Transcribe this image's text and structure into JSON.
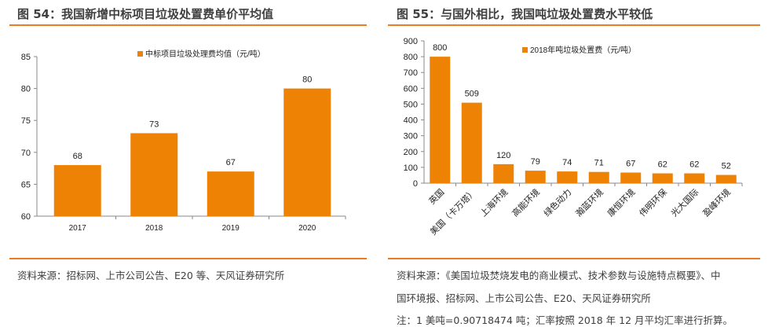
{
  "left_panel": {
    "title": "图 54：我国新增中标项目垃圾处置费单价平均值",
    "source": "资料来源：招标网、上市公司公告、E20 等、天风证券研究所"
  },
  "right_panel": {
    "title": "图 55：与国外相比，我国吨垃圾处置费水平较低",
    "source_lines": [
      "资料来源：《美国垃圾焚烧发电的商业模式、技术参数与设施特点概要》、中",
      "国环境报、招标网、上市公司公告、E20、天风证券研究所",
      "注：1 美吨=0.90718474 吨；汇率按照 2018 年 12 月平均汇率进行折算。"
    ]
  },
  "colors": {
    "bar": "#ee8205",
    "rule": "#ec7c22",
    "text": "#404040"
  },
  "chart_data": [
    {
      "type": "bar",
      "title": "",
      "categories": [
        "2017",
        "2018",
        "2019",
        "2020"
      ],
      "series": [
        {
          "name": "中标项目垃圾处理费均值（元/吨）",
          "values": [
            68,
            73,
            67,
            80
          ]
        }
      ],
      "ylim": [
        60,
        85
      ],
      "yticks": [
        "60",
        "65",
        "70",
        "75",
        "80",
        "85"
      ],
      "data_labels": true,
      "grid": false,
      "legend": "top-center"
    },
    {
      "type": "bar",
      "title": "",
      "categories": [
        "英国",
        "美国（卡万塔）",
        "上海环境",
        "高能环境",
        "绿色动力",
        "瀚蓝环境",
        "康恒环境",
        "伟明环保",
        "光大国际",
        "盈峰环境"
      ],
      "series": [
        {
          "name": "2018年吨垃圾处置费（元/吨）",
          "values": [
            800,
            509,
            120,
            79,
            74,
            71,
            67,
            62,
            62,
            52
          ]
        }
      ],
      "ylim": [
        0,
        900
      ],
      "yticks": [
        "0",
        "100",
        "200",
        "300",
        "400",
        "500",
        "600",
        "700",
        "800",
        "900"
      ],
      "data_labels": true,
      "grid": false,
      "legend": "top-center",
      "xlabel_rotation": "45"
    }
  ]
}
